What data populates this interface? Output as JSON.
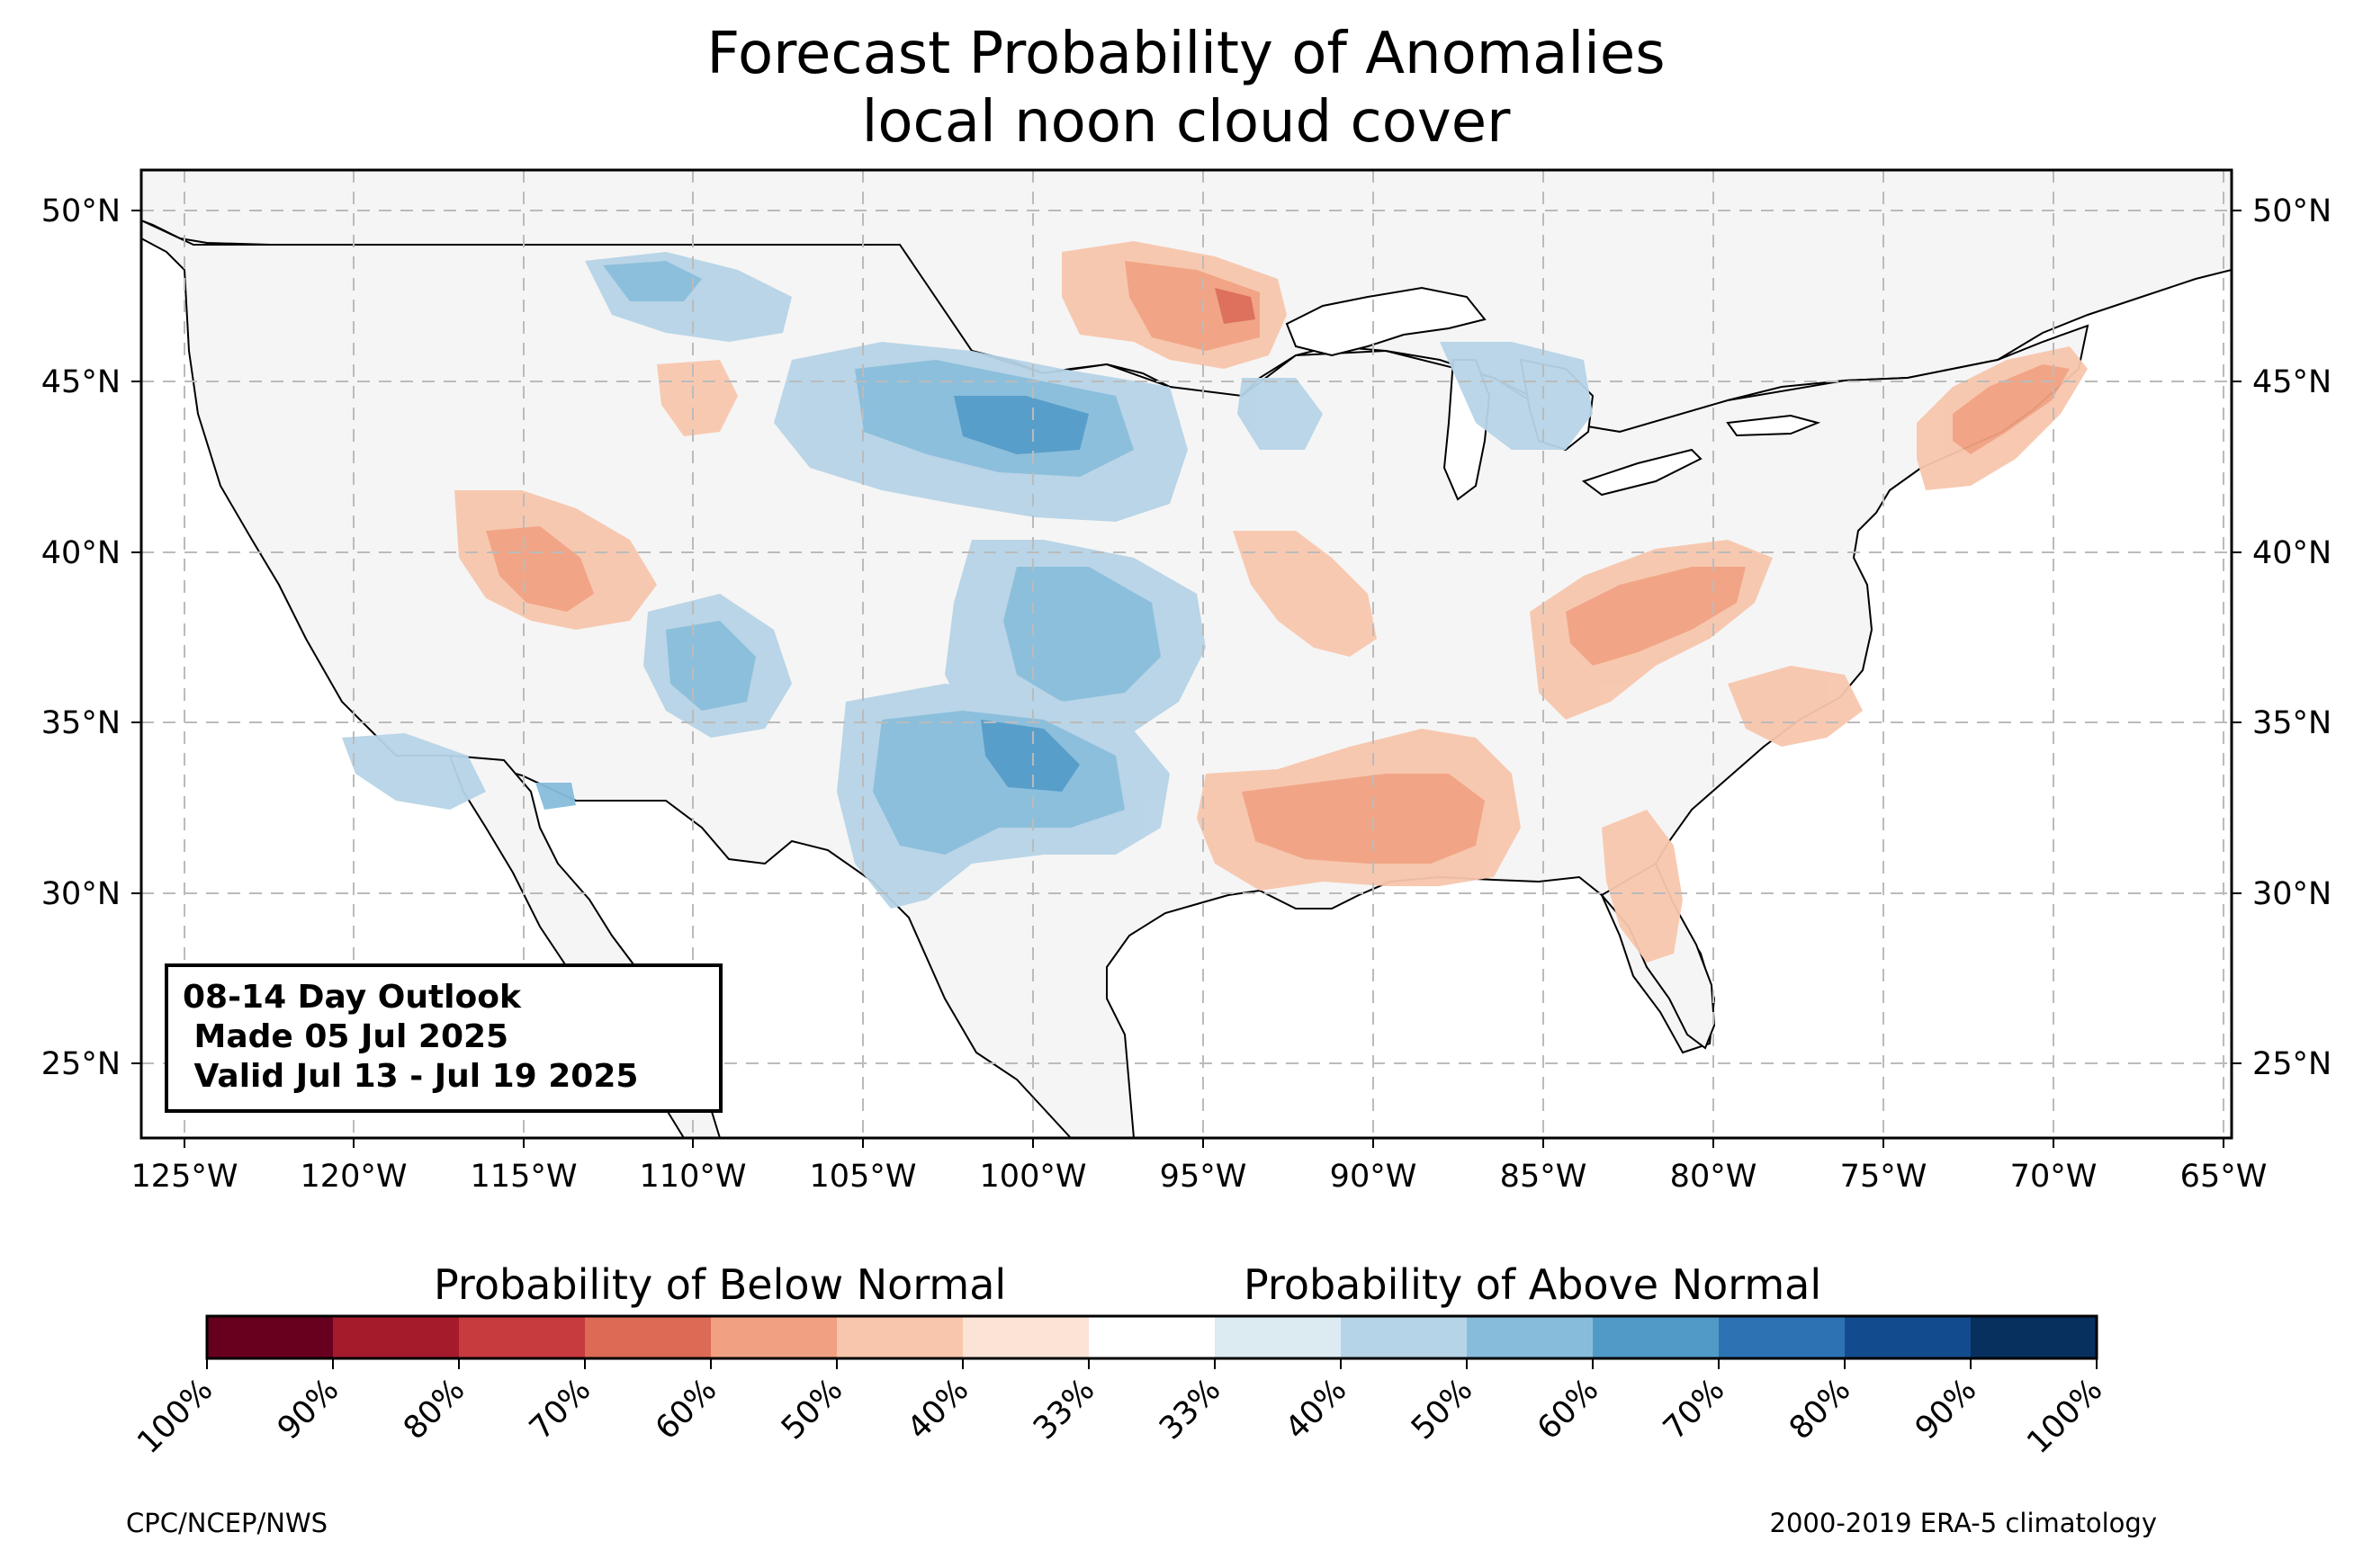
{
  "title": {
    "line1": "Forecast Probability of Anomalies",
    "line2": "local noon cloud cover"
  },
  "outlook": {
    "line1": "08-14 Day Outlook",
    "line2": " Made 05 Jul 2025",
    "line3": " Valid Jul 13 - Jul 19 2025"
  },
  "axes": {
    "lon_labels": [
      "125°W",
      "120°W",
      "115°W",
      "110°W",
      "105°W",
      "100°W",
      "95°W",
      "90°W",
      "85°W",
      "80°W",
      "75°W",
      "70°W",
      "65°W"
    ],
    "lon_values": [
      -125,
      -120,
      -115,
      -110,
      -105,
      -100,
      -95,
      -90,
      -85,
      -80,
      -75,
      -70,
      -65
    ],
    "lat_labels": [
      "50°N",
      "45°N",
      "40°N",
      "35°N",
      "30°N",
      "25°N"
    ],
    "lat_values": [
      50,
      45,
      40,
      35,
      30,
      25
    ],
    "lon_range": [
      -126.3,
      -64.9
    ],
    "lat_range": [
      22.7,
      51.1
    ],
    "grid": "dashed gray"
  },
  "colorbar": {
    "below_title": "Probability of Below Normal",
    "above_title": "Probability of Above Normal",
    "tick_labels": [
      "100%",
      "90%",
      "80%",
      "70%",
      "60%",
      "50%",
      "40%",
      "33%",
      "33%",
      "40%",
      "50%",
      "60%",
      "70%",
      "80%",
      "90%",
      "100%"
    ],
    "colors": [
      "#67001f",
      "#a51b2c",
      "#c73a3e",
      "#dc6a55",
      "#f1a181",
      "#f8c6ad",
      "#fbe4d6",
      "#ffffff",
      "#dceaf2",
      "#b6d4e7",
      "#87bddb",
      "#509ac8",
      "#2d73b3",
      "#134c8e",
      "#07305f"
    ]
  },
  "palette": {
    "land": "#f5f5f5",
    "below_light": "#f8c6ad",
    "below_mid": "#f1a181",
    "below_strong": "#dc6a55",
    "above_light": "#dceaf2",
    "above_low": "#b6d4e7",
    "above_mid": "#87bddb",
    "above_strong": "#509ac8"
  },
  "footer": {
    "left": "CPC/NCEP/NWS",
    "right": "2000-2019 ERA-5 climatology"
  }
}
